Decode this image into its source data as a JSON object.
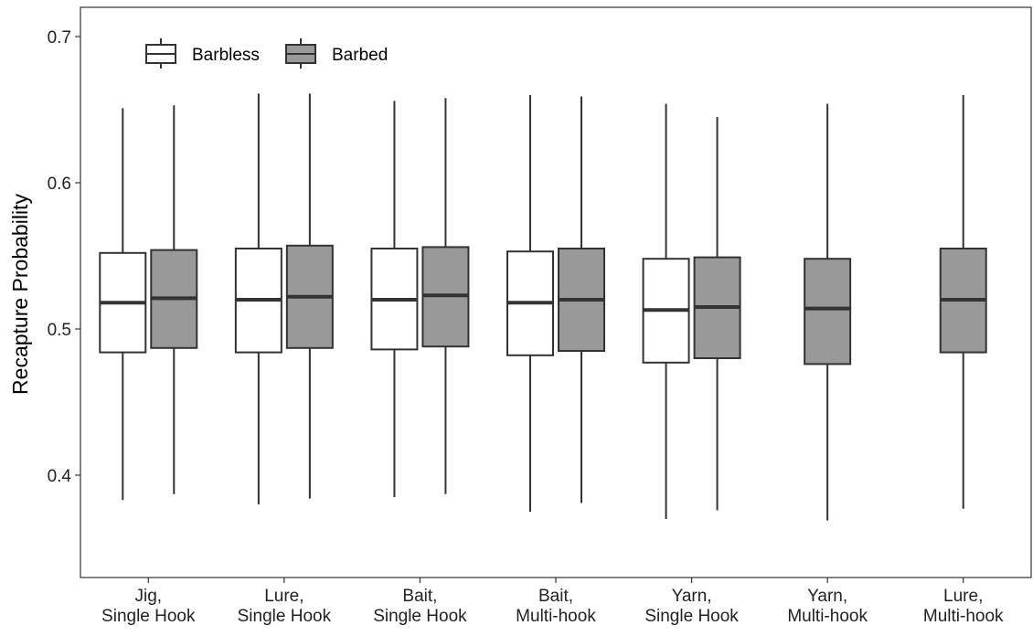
{
  "chart_data": {
    "type": "box",
    "ylabel": "Recapture Probability",
    "xlabel": "",
    "ylim": [
      0.33,
      0.72
    ],
    "yticks": [
      0.4,
      0.5,
      0.6,
      0.7
    ],
    "grid": false,
    "legend_position": "top-left",
    "categories": [
      [
        "Jig,",
        "Single Hook"
      ],
      [
        "Lure,",
        "Single Hook"
      ],
      [
        "Bait,",
        "Single Hook"
      ],
      [
        "Bait,",
        "Multi-hook"
      ],
      [
        "Yarn,",
        "Single Hook"
      ],
      [
        "Yarn,",
        "Multi-hook"
      ],
      [
        "Lure,",
        "Multi-hook"
      ]
    ],
    "series": [
      {
        "name": "Barbless",
        "color": "#ffffff",
        "boxes": [
          {
            "category": 0,
            "min": 0.383,
            "q1": 0.484,
            "median": 0.518,
            "q3": 0.552,
            "max": 0.651
          },
          {
            "category": 1,
            "min": 0.38,
            "q1": 0.484,
            "median": 0.52,
            "q3": 0.555,
            "max": 0.661
          },
          {
            "category": 2,
            "min": 0.385,
            "q1": 0.486,
            "median": 0.52,
            "q3": 0.555,
            "max": 0.656
          },
          {
            "category": 3,
            "min": 0.375,
            "q1": 0.482,
            "median": 0.518,
            "q3": 0.553,
            "max": 0.66
          },
          {
            "category": 4,
            "min": 0.37,
            "q1": 0.477,
            "median": 0.513,
            "q3": 0.548,
            "max": 0.654
          }
        ]
      },
      {
        "name": "Barbed",
        "color": "#999999",
        "boxes": [
          {
            "category": 0,
            "min": 0.387,
            "q1": 0.487,
            "median": 0.521,
            "q3": 0.554,
            "max": 0.653
          },
          {
            "category": 1,
            "min": 0.384,
            "q1": 0.487,
            "median": 0.522,
            "q3": 0.557,
            "max": 0.661
          },
          {
            "category": 2,
            "min": 0.387,
            "q1": 0.488,
            "median": 0.523,
            "q3": 0.556,
            "max": 0.658
          },
          {
            "category": 3,
            "min": 0.381,
            "q1": 0.485,
            "median": 0.52,
            "q3": 0.555,
            "max": 0.659
          },
          {
            "category": 4,
            "min": 0.376,
            "q1": 0.48,
            "median": 0.515,
            "q3": 0.549,
            "max": 0.645
          },
          {
            "category": 5,
            "min": 0.369,
            "q1": 0.476,
            "median": 0.514,
            "q3": 0.548,
            "max": 0.654
          },
          {
            "category": 6,
            "min": 0.377,
            "q1": 0.484,
            "median": 0.52,
            "q3": 0.555,
            "max": 0.66
          }
        ]
      }
    ]
  },
  "style": {
    "axis_color": "#333333",
    "box_stroke": "#333333"
  }
}
